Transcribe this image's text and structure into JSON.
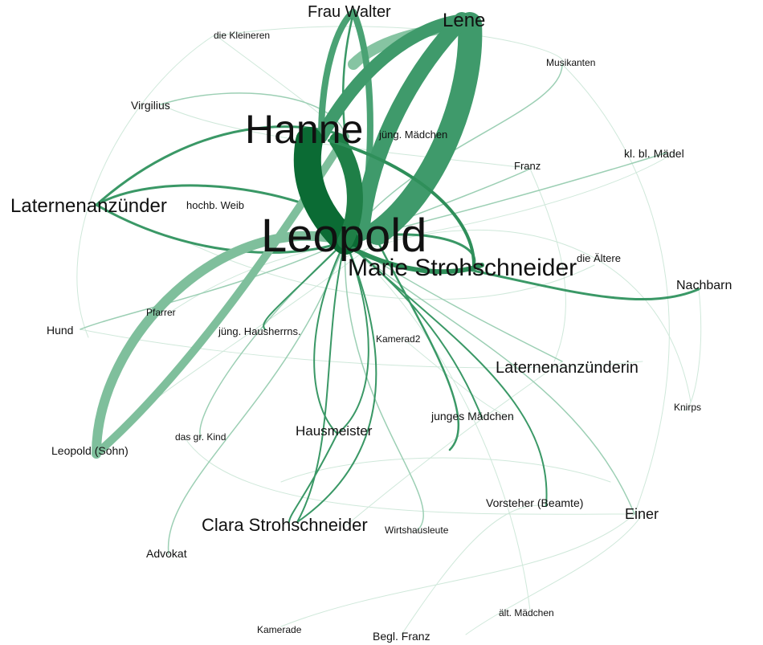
{
  "graph": {
    "accent_colors": {
      "strong": "#0b6b34",
      "medium": "#2f8f5a",
      "light": "#8dc6a8",
      "faint": "#cfe8da"
    },
    "nodes": {
      "leopold": "Leopold",
      "hanne": "Hanne",
      "marie": "Marie Strohschneider",
      "lene": "Lene",
      "frau_walter": "Frau Walter",
      "laternenanzuender": "Laternenanzünder",
      "laternenanzuenderin": "Laternenanzünderin",
      "clara": "Clara Strohschneider",
      "hausmeister": "Hausmeister",
      "leopold_sohn": "Leopold (Sohn)",
      "nachbarn": "Nachbarn",
      "einer": "Einer",
      "virgilius": "Virgilius",
      "jung_maedchen": "jüng. Mädchen",
      "hochb_weib": "hochb. Weib",
      "jung_hausherrns": "jüng. Hausherrns.",
      "junges_maedchen": "junges Mädchen",
      "vorsteher": "Vorsteher (Beamte)",
      "kl_bl_maedel": "kl. bl. Mädel",
      "franz": "Franz",
      "die_aeltere": "die Ältere",
      "die_kleineren": "die Kleineren",
      "musikanten": "Musikanten",
      "pfarrer": "Pfarrer",
      "hund": "Hund",
      "kamerad2": "Kamerad2",
      "das_gr_kind": "das gr. Kind",
      "advokat": "Advokat",
      "wirtshausleute": "Wirtshausleute",
      "knirps": "Knirps",
      "kamerade": "Kamerade",
      "begl_franz": "Begl. Franz",
      "alt_maedchen": "ält. Mädchen"
    }
  }
}
